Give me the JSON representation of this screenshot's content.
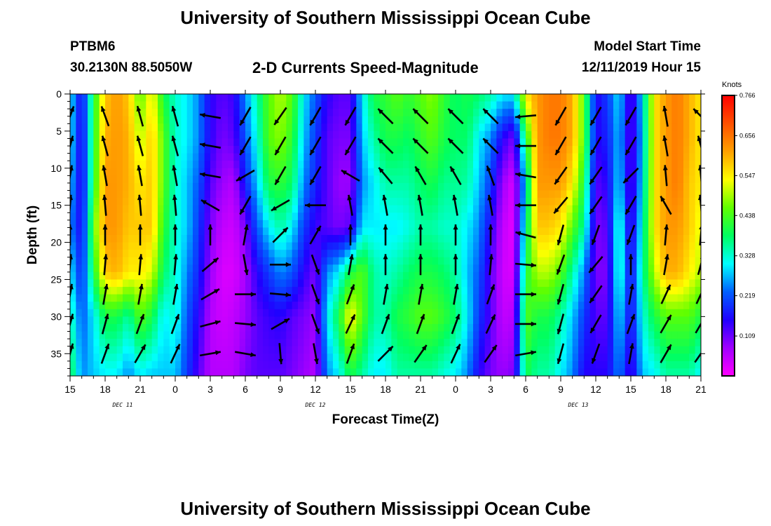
{
  "header": {
    "title": "University of Southern Mississippi Ocean Cube",
    "station": "PTBM6",
    "coordinates": "30.2130N 88.5050W",
    "subtitle": "2-D Currents Speed-Magnitude",
    "model_start_label": "Model Start Time",
    "model_start_value": "12/11/2019 Hour 15"
  },
  "footer": {
    "title": "University of Southern Mississippi Ocean Cube"
  },
  "chart_data": {
    "type": "heatmap",
    "xlabel": "Forecast Time(Z)",
    "ylabel": "Depth (ft)",
    "x_range_hours": [
      0,
      54
    ],
    "x_ticks": [
      {
        "hour": 0,
        "label": "15"
      },
      {
        "hour": 3,
        "label": "18"
      },
      {
        "hour": 6,
        "label": "21"
      },
      {
        "hour": 9,
        "label": "0"
      },
      {
        "hour": 12,
        "label": "3"
      },
      {
        "hour": 15,
        "label": "6"
      },
      {
        "hour": 18,
        "label": "9"
      },
      {
        "hour": 21,
        "label": "12"
      },
      {
        "hour": 24,
        "label": "15"
      },
      {
        "hour": 27,
        "label": "18"
      },
      {
        "hour": 30,
        "label": "21"
      },
      {
        "hour": 33,
        "label": "0"
      },
      {
        "hour": 36,
        "label": "3"
      },
      {
        "hour": 39,
        "label": "6"
      },
      {
        "hour": 42,
        "label": "9"
      },
      {
        "hour": 45,
        "label": "12"
      },
      {
        "hour": 48,
        "label": "15"
      },
      {
        "hour": 51,
        "label": "18"
      },
      {
        "hour": 54,
        "label": "21"
      }
    ],
    "day_labels": [
      {
        "hour": 4.5,
        "label": "DEC 11"
      },
      {
        "hour": 21,
        "label": "DEC 12"
      },
      {
        "hour": 43.5,
        "label": "DEC 13"
      }
    ],
    "y_range": [
      0,
      38
    ],
    "y_inverted": true,
    "y_ticks": [
      0,
      5,
      10,
      15,
      20,
      25,
      30,
      35
    ],
    "colorbar": {
      "unit": "Knots",
      "range": [
        0,
        0.766
      ],
      "labels": [
        "0.766",
        "0.656",
        "0.547",
        "0.438",
        "0.328",
        "0.219",
        "0.109"
      ],
      "stops": [
        "#ff00ff",
        "#a000ff",
        "#2000ff",
        "#0060ff",
        "#00ffff",
        "#00ff60",
        "#60ff00",
        "#ffff00",
        "#ffa000",
        "#ff5000",
        "#ff0000"
      ]
    },
    "speed_grid": {
      "times_hours": [
        0,
        1,
        2,
        3,
        4,
        5,
        6,
        7,
        8,
        9,
        10,
        11,
        12,
        13,
        14,
        15,
        16,
        17,
        18,
        19,
        20,
        21,
        22,
        23,
        24,
        25,
        26,
        27,
        28,
        29,
        30,
        31,
        32,
        33,
        34,
        35,
        36,
        37,
        38,
        39,
        40,
        41,
        42,
        43,
        44,
        45,
        46,
        47,
        48,
        49,
        50,
        51,
        52,
        53,
        54
      ],
      "depths_ft": [
        0,
        5,
        10,
        15,
        20,
        25,
        30,
        35,
        38
      ],
      "speeds": [
        [
          0.3,
          0.3,
          0.28,
          0.25,
          0.3,
          0.35,
          0.4
        ],
        [
          0.15,
          0.14,
          0.14,
          0.15,
          0.18,
          0.22,
          0.25
        ],
        [
          0.4,
          0.4,
          0.4,
          0.45,
          0.4,
          0.3,
          0.28
        ],
        [
          0.58,
          0.6,
          0.62,
          0.62,
          0.58,
          0.4,
          0.3
        ],
        [
          0.62,
          0.62,
          0.62,
          0.62,
          0.6,
          0.4,
          0.3
        ],
        [
          0.58,
          0.6,
          0.6,
          0.58,
          0.55,
          0.35,
          0.25
        ],
        [
          0.45,
          0.5,
          0.55,
          0.58,
          0.55,
          0.45,
          0.3
        ],
        [
          0.55,
          0.58,
          0.58,
          0.58,
          0.52,
          0.4,
          0.28
        ],
        [
          0.4,
          0.45,
          0.45,
          0.42,
          0.38,
          0.3,
          0.28
        ],
        [
          0.33,
          0.33,
          0.33,
          0.33,
          0.33,
          0.33,
          0.28
        ],
        [
          0.3,
          0.3,
          0.28,
          0.28,
          0.25,
          0.22,
          0.2
        ],
        [
          0.25,
          0.25,
          0.22,
          0.2,
          0.18,
          0.15,
          0.12
        ],
        [
          0.15,
          0.15,
          0.12,
          0.1,
          0.08,
          0.06,
          0.06
        ],
        [
          0.12,
          0.1,
          0.08,
          0.05,
          0.03,
          0.04,
          0.06
        ],
        [
          0.14,
          0.12,
          0.06,
          0.04,
          0.03,
          0.05,
          0.06
        ],
        [
          0.25,
          0.22,
          0.18,
          0.1,
          0.07,
          0.08,
          0.1
        ],
        [
          0.35,
          0.32,
          0.28,
          0.22,
          0.15,
          0.12,
          0.12
        ],
        [
          0.45,
          0.45,
          0.4,
          0.3,
          0.2,
          0.14,
          0.12
        ],
        [
          0.5,
          0.48,
          0.42,
          0.35,
          0.25,
          0.15,
          0.12
        ],
        [
          0.45,
          0.42,
          0.38,
          0.3,
          0.22,
          0.12,
          0.1
        ],
        [
          0.3,
          0.28,
          0.25,
          0.2,
          0.15,
          0.1,
          0.08
        ],
        [
          0.22,
          0.2,
          0.18,
          0.14,
          0.1,
          0.08,
          0.06
        ],
        [
          0.15,
          0.12,
          0.12,
          0.12,
          0.25,
          0.3,
          0.25
        ],
        [
          0.12,
          0.1,
          0.08,
          0.1,
          0.3,
          0.4,
          0.3
        ],
        [
          0.12,
          0.1,
          0.08,
          0.12,
          0.4,
          0.55,
          0.4
        ],
        [
          0.3,
          0.28,
          0.25,
          0.3,
          0.45,
          0.45,
          0.35
        ],
        [
          0.4,
          0.35,
          0.3,
          0.3,
          0.35,
          0.35,
          0.3
        ],
        [
          0.42,
          0.4,
          0.35,
          0.3,
          0.33,
          0.35,
          0.3
        ],
        [
          0.45,
          0.4,
          0.35,
          0.3,
          0.35,
          0.4,
          0.35
        ],
        [
          0.42,
          0.38,
          0.35,
          0.32,
          0.38,
          0.42,
          0.35
        ],
        [
          0.45,
          0.42,
          0.38,
          0.35,
          0.4,
          0.45,
          0.35
        ],
        [
          0.48,
          0.45,
          0.4,
          0.35,
          0.4,
          0.45,
          0.35
        ],
        [
          0.42,
          0.4,
          0.36,
          0.33,
          0.38,
          0.42,
          0.32
        ],
        [
          0.38,
          0.38,
          0.36,
          0.33,
          0.35,
          0.38,
          0.3
        ],
        [
          0.4,
          0.38,
          0.35,
          0.3,
          0.28,
          0.3,
          0.25
        ],
        [
          0.38,
          0.3,
          0.28,
          0.25,
          0.22,
          0.2,
          0.15
        ],
        [
          0.35,
          0.25,
          0.2,
          0.15,
          0.12,
          0.12,
          0.1
        ],
        [
          0.3,
          0.15,
          0.08,
          0.05,
          0.04,
          0.05,
          0.08
        ],
        [
          0.3,
          0.1,
          0.03,
          0.02,
          0.03,
          0.06,
          0.1
        ],
        [
          0.55,
          0.4,
          0.3,
          0.35,
          0.4,
          0.45,
          0.4
        ],
        [
          0.62,
          0.62,
          0.62,
          0.58,
          0.5,
          0.4,
          0.35
        ],
        [
          0.65,
          0.65,
          0.62,
          0.58,
          0.5,
          0.4,
          0.35
        ],
        [
          0.65,
          0.65,
          0.62,
          0.55,
          0.45,
          0.35,
          0.3
        ],
        [
          0.6,
          0.6,
          0.55,
          0.45,
          0.35,
          0.28,
          0.25
        ],
        [
          0.45,
          0.45,
          0.4,
          0.35,
          0.25,
          0.2,
          0.15
        ],
        [
          0.15,
          0.15,
          0.12,
          0.1,
          0.1,
          0.12,
          0.15
        ],
        [
          0.2,
          0.18,
          0.15,
          0.12,
          0.1,
          0.12,
          0.15
        ],
        [
          0.3,
          0.28,
          0.3,
          0.35,
          0.35,
          0.3,
          0.25
        ],
        [
          0.1,
          0.1,
          0.1,
          0.12,
          0.15,
          0.15,
          0.12
        ],
        [
          0.3,
          0.28,
          0.3,
          0.33,
          0.35,
          0.32,
          0.28
        ],
        [
          0.55,
          0.55,
          0.55,
          0.55,
          0.5,
          0.4,
          0.3
        ],
        [
          0.62,
          0.62,
          0.62,
          0.62,
          0.6,
          0.45,
          0.35
        ],
        [
          0.65,
          0.65,
          0.65,
          0.62,
          0.6,
          0.45,
          0.35
        ],
        [
          0.6,
          0.6,
          0.58,
          0.58,
          0.55,
          0.45,
          0.35
        ],
        [
          0.55,
          0.55,
          0.55,
          0.52,
          0.5,
          0.4,
          0.3
        ]
      ],
      "speeds_depth_nodes_ft": [
        0,
        6,
        12,
        18,
        24,
        30,
        38
      ]
    },
    "vectors": {
      "times_hours": [
        0,
        3,
        6,
        9,
        12,
        15,
        18,
        21,
        24,
        27,
        30,
        33,
        36,
        39,
        42,
        45,
        48,
        51,
        54
      ],
      "depths_ft": [
        3,
        7,
        11,
        15,
        19,
        23,
        27,
        31,
        35
      ],
      "direction_deg": [
        [
          20,
          340,
          345,
          345,
          280,
          210,
          215,
          210,
          210,
          315,
          315,
          315,
          315,
          265,
          210,
          210,
          210,
          350,
          315
        ],
        [
          15,
          345,
          345,
          345,
          280,
          210,
          210,
          210,
          210,
          315,
          315,
          315,
          315,
          270,
          210,
          210,
          210,
          350,
          345
        ],
        [
          10,
          350,
          350,
          350,
          280,
          240,
          210,
          210,
          300,
          320,
          330,
          330,
          340,
          280,
          215,
          215,
          225,
          355,
          355
        ],
        [
          5,
          355,
          355,
          355,
          300,
          210,
          240,
          270,
          350,
          350,
          350,
          350,
          350,
          270,
          220,
          215,
          210,
          330,
          355
        ],
        [
          0,
          0,
          0,
          0,
          0,
          10,
          45,
          30,
          0,
          0,
          0,
          0,
          0,
          285,
          195,
          200,
          200,
          5,
          5
        ],
        [
          5,
          5,
          5,
          5,
          50,
          170,
          90,
          160,
          10,
          0,
          0,
          0,
          5,
          95,
          200,
          220,
          0,
          10,
          15
        ],
        [
          10,
          10,
          10,
          10,
          60,
          90,
          95,
          160,
          20,
          10,
          10,
          10,
          20,
          90,
          195,
          215,
          10,
          25,
          25
        ],
        [
          15,
          15,
          20,
          20,
          75,
          95,
          60,
          160,
          25,
          20,
          20,
          20,
          25,
          90,
          195,
          210,
          20,
          30,
          30
        ],
        [
          15,
          20,
          30,
          25,
          80,
          100,
          175,
          170,
          20,
          45,
          35,
          25,
          35,
          80,
          195,
          200,
          10,
          30,
          35
        ]
      ]
    }
  }
}
